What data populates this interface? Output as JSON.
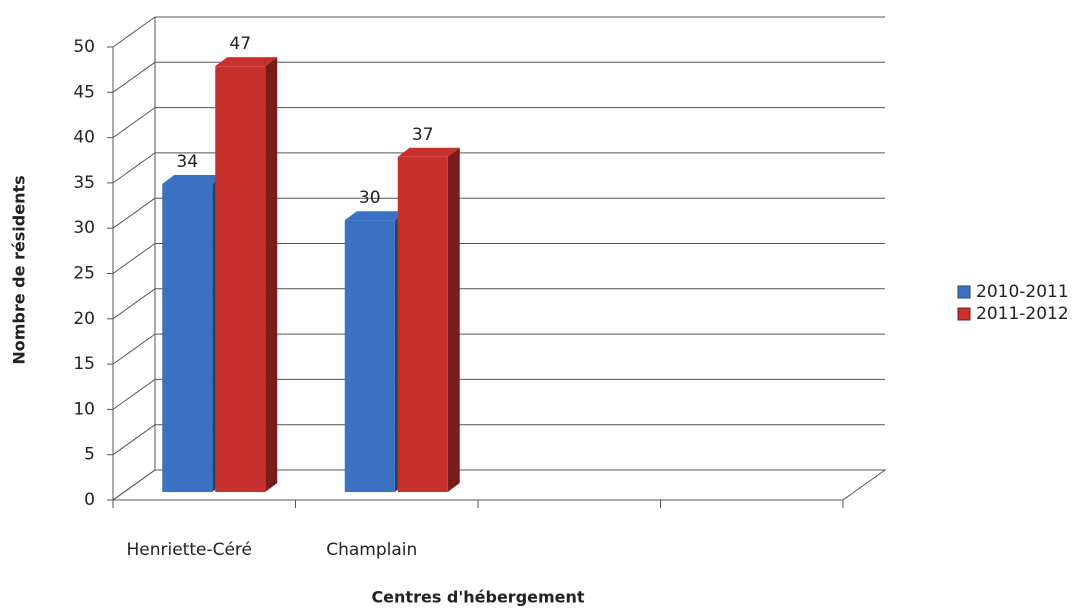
{
  "chart_data": {
    "type": "bar3d",
    "x_label": "Centres d'hébergement",
    "y_label": "Nombre de résidents",
    "categories": [
      "Henriette-Céré",
      "Champlain",
      null,
      null
    ],
    "series": [
      {
        "name": "2010-2011",
        "color": "#3b70c2",
        "values": [
          34,
          30,
          null,
          null
        ]
      },
      {
        "name": "2011-2012",
        "color": "#c8302e",
        "values": [
          47,
          37,
          null,
          null
        ]
      }
    ],
    "ylim": [
      0,
      50
    ],
    "yticks": [
      0,
      5,
      10,
      15,
      20,
      25,
      30,
      35,
      40,
      45,
      50
    ],
    "grid": true,
    "legend": "right"
  }
}
